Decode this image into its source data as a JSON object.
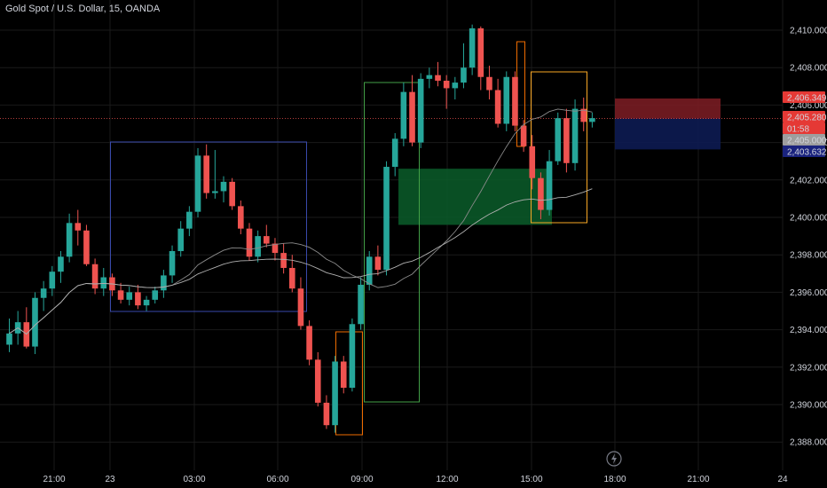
{
  "header": {
    "title": "Gold Spot / U.S. Dollar, 15, OANDA"
  },
  "colors": {
    "bull": "#26a69a",
    "bear": "#ef5350",
    "background": "#000000",
    "grid": "#1a1a1a",
    "ma_fast": "#8a8a8a",
    "ma_slow": "#b0b0b0",
    "box_blue": "#3949ab",
    "box_green": "#43a047",
    "box_orange": "#ef6c00",
    "box_gold": "#f9a825",
    "fvg_fill": "#0b5d2a",
    "short_stop": "#7f1d24",
    "short_target": "#0d1b52"
  },
  "price_tags": [
    {
      "label": "2,406.349",
      "bg": "#e53935"
    },
    {
      "label": "2,405.280",
      "bg": "#e53935"
    },
    {
      "label": "01:58",
      "bg": "#e53935"
    },
    {
      "label": "2,405.000",
      "bg": "#9e9e9e"
    },
    {
      "label": "2,403.632",
      "bg": "#1a237e"
    }
  ],
  "chart_data": {
    "type": "candlestick",
    "title": "Gold Spot / U.S. Dollar, 15, OANDA",
    "y_ticks": [
      "2,388.000",
      "2,390.000",
      "2,392.000",
      "2,394.000",
      "2,396.000",
      "2,398.000",
      "2,400.000",
      "2,402.000",
      "2,404.000",
      "2,406.000",
      "2,408.000",
      "2,410.000"
    ],
    "x_ticks": [
      "21:00",
      "23",
      "03:00",
      "06:00",
      "09:00",
      "12:00",
      "15:00",
      "18:00",
      "21:00",
      "24"
    ],
    "ylim": [
      2387.2,
      2411.4
    ],
    "current_price": 2405.28,
    "candles": [
      [
        2393.2,
        2394.6,
        2392.8,
        2393.8
      ],
      [
        2393.8,
        2395.0,
        2393.2,
        2394.4
      ],
      [
        2394.4,
        2395.2,
        2393.0,
        2393.1
      ],
      [
        2393.1,
        2396.0,
        2392.7,
        2395.7
      ],
      [
        2395.7,
        2396.6,
        2395.0,
        2396.2
      ],
      [
        2396.2,
        2397.4,
        2395.8,
        2397.1
      ],
      [
        2397.1,
        2398.2,
        2396.5,
        2397.9
      ],
      [
        2397.9,
        2400.2,
        2397.6,
        2399.7
      ],
      [
        2399.7,
        2400.4,
        2398.5,
        2399.3
      ],
      [
        2399.3,
        2399.6,
        2397.4,
        2397.5
      ],
      [
        2397.5,
        2397.8,
        2395.9,
        2396.2
      ],
      [
        2396.2,
        2397.3,
        2395.8,
        2396.8
      ],
      [
        2396.8,
        2397.0,
        2395.8,
        2396.1
      ],
      [
        2396.1,
        2396.5,
        2395.4,
        2395.6
      ],
      [
        2395.6,
        2396.3,
        2395.3,
        2396.0
      ],
      [
        2396.0,
        2396.4,
        2395.1,
        2395.3
      ],
      [
        2395.3,
        2395.8,
        2395.0,
        2395.6
      ],
      [
        2395.6,
        2396.3,
        2395.4,
        2396.1
      ],
      [
        2396.1,
        2397.2,
        2395.7,
        2396.9
      ],
      [
        2396.9,
        2398.5,
        2396.5,
        2398.2
      ],
      [
        2398.2,
        2399.8,
        2397.9,
        2399.4
      ],
      [
        2399.4,
        2400.6,
        2399.0,
        2400.3
      ],
      [
        2400.3,
        2403.7,
        2400.0,
        2403.3
      ],
      [
        2403.3,
        2403.9,
        2401.0,
        2401.3
      ],
      [
        2401.3,
        2403.6,
        2401.0,
        2401.4
      ],
      [
        2401.4,
        2402.2,
        2400.8,
        2401.9
      ],
      [
        2401.9,
        2402.1,
        2400.4,
        2400.6
      ],
      [
        2400.6,
        2400.9,
        2399.1,
        2399.4
      ],
      [
        2399.4,
        2399.7,
        2397.7,
        2397.9
      ],
      [
        2397.9,
        2399.3,
        2397.6,
        2399.0
      ],
      [
        2399.0,
        2399.6,
        2398.4,
        2398.6
      ],
      [
        2398.6,
        2398.9,
        2397.7,
        2398.1
      ],
      [
        2398.1,
        2398.6,
        2397.0,
        2397.3
      ],
      [
        2397.3,
        2398.0,
        2396.0,
        2396.2
      ],
      [
        2396.2,
        2396.8,
        2394.0,
        2394.2
      ],
      [
        2394.2,
        2394.5,
        2392.1,
        2392.4
      ],
      [
        2392.4,
        2392.8,
        2389.9,
        2390.1
      ],
      [
        2390.1,
        2390.5,
        2388.7,
        2388.9
      ],
      [
        2388.9,
        2392.6,
        2388.5,
        2392.3
      ],
      [
        2392.3,
        2392.6,
        2390.6,
        2390.9
      ],
      [
        2390.9,
        2394.6,
        2390.7,
        2394.3
      ],
      [
        2394.3,
        2396.8,
        2394.0,
        2396.4
      ],
      [
        2396.4,
        2398.2,
        2396.1,
        2397.9
      ],
      [
        2397.9,
        2398.5,
        2396.9,
        2397.2
      ],
      [
        2397.2,
        2403.0,
        2396.9,
        2402.7
      ],
      [
        2402.7,
        2404.5,
        2402.2,
        2404.2
      ],
      [
        2404.2,
        2407.2,
        2403.8,
        2406.7
      ],
      [
        2406.7,
        2407.6,
        2403.8,
        2404.0
      ],
      [
        2404.0,
        2407.7,
        2403.7,
        2407.4
      ],
      [
        2407.4,
        2408.0,
        2406.9,
        2407.6
      ],
      [
        2407.6,
        2408.3,
        2407.0,
        2407.3
      ],
      [
        2407.3,
        2407.6,
        2405.8,
        2406.9
      ],
      [
        2406.9,
        2407.5,
        2406.3,
        2407.2
      ],
      [
        2407.2,
        2409.3,
        2406.9,
        2408.0
      ],
      [
        2408.0,
        2410.3,
        2407.6,
        2410.1
      ],
      [
        2410.1,
        2410.2,
        2406.8,
        2407.5
      ],
      [
        2407.5,
        2408.1,
        2406.3,
        2406.8
      ],
      [
        2406.8,
        2407.4,
        2404.8,
        2405.0
      ],
      [
        2405.0,
        2407.8,
        2404.6,
        2407.5
      ],
      [
        2407.5,
        2407.8,
        2404.6,
        2404.9
      ],
      [
        2404.9,
        2405.2,
        2403.5,
        2403.8
      ],
      [
        2403.8,
        2404.4,
        2401.5,
        2402.1
      ],
      [
        2402.1,
        2402.4,
        2399.9,
        2400.4
      ],
      [
        2400.4,
        2403.6,
        2400.1,
        2403.0
      ],
      [
        2403.0,
        2405.6,
        2402.8,
        2405.3
      ],
      [
        2405.3,
        2405.8,
        2402.4,
        2402.9
      ],
      [
        2402.9,
        2406.3,
        2402.5,
        2405.8
      ],
      [
        2405.8,
        2406.4,
        2404.6,
        2405.1
      ],
      [
        2405.1,
        2405.6,
        2404.8,
        2405.3
      ]
    ]
  }
}
